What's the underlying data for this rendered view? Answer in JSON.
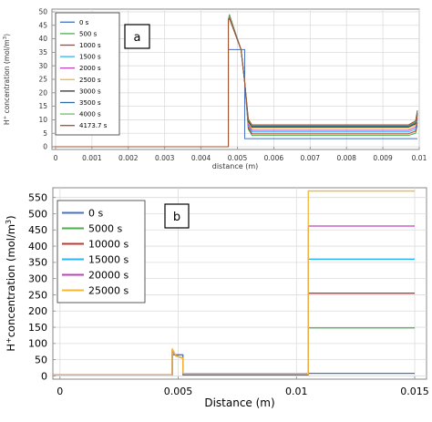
{
  "chart_data": [
    {
      "panel_label": "a",
      "type": "line",
      "xlabel": "distance (m)",
      "ylabel_main": "H",
      "ylabel_sup": "+",
      "ylabel_rest": " concentration (mol/m",
      "ylabel_unit_sup": "3",
      "ylabel_end": ")",
      "xlim": [
        -0.0001,
        0.01
      ],
      "ylim": [
        -1,
        51
      ],
      "xticks": [
        0,
        0.001,
        0.002,
        0.003,
        0.004,
        0.005,
        0.006,
        0.007,
        0.008,
        0.009,
        0.01
      ],
      "yticks": [
        0,
        5,
        10,
        15,
        20,
        25,
        30,
        35,
        40,
        45,
        50
      ],
      "grid": true,
      "legend_position": "top-left",
      "series": [
        {
          "name": "0 s",
          "color": "#4472c4",
          "x": [
            -0.0001,
            0.00475,
            0.00475,
            0.0052,
            0.0052,
            0.00995
          ],
          "y": [
            0,
            0,
            36,
            36,
            3,
            3
          ]
        },
        {
          "name": "500 s",
          "color": "#4caf50",
          "x": [
            -0.0001,
            0.00475,
            0.00475,
            0.00478,
            0.0051,
            0.0052,
            0.0053,
            0.0054,
            0.0097,
            0.0099,
            0.00995
          ],
          "y": [
            0,
            0,
            47,
            49,
            36,
            24,
            6.5,
            4.2,
            4.2,
            5,
            8
          ]
        },
        {
          "name": "1000 s",
          "color": "#c0392b",
          "x": [
            -0.0001,
            0.00475,
            0.00475,
            0.00478,
            0.0051,
            0.0052,
            0.0053,
            0.0054,
            0.0097,
            0.0099,
            0.00995
          ],
          "y": [
            0,
            0,
            47,
            48.5,
            36,
            24,
            7,
            4.8,
            4.8,
            5.8,
            9
          ]
        },
        {
          "name": "1500 s",
          "color": "#29b6f6",
          "x": [
            -0.0001,
            0.00475,
            0.00475,
            0.00478,
            0.0051,
            0.0052,
            0.0053,
            0.0054,
            0.0097,
            0.0099,
            0.00995
          ],
          "y": [
            0,
            0,
            47,
            48.3,
            36,
            24,
            7.6,
            5.5,
            5.5,
            6.5,
            10
          ]
        },
        {
          "name": "2000 s",
          "color": "#c040c0",
          "x": [
            -0.0001,
            0.00475,
            0.00475,
            0.00478,
            0.0051,
            0.0052,
            0.0053,
            0.0054,
            0.0097,
            0.0099,
            0.00995
          ],
          "y": [
            0,
            0,
            47,
            48.1,
            36,
            24,
            8.2,
            6.1,
            6.1,
            7.2,
            10.8
          ]
        },
        {
          "name": "2500 s",
          "color": "#f5b82e",
          "x": [
            -0.0001,
            0.00475,
            0.00475,
            0.00478,
            0.0051,
            0.0052,
            0.0053,
            0.0054,
            0.0097,
            0.0099,
            0.00995
          ],
          "y": [
            0,
            0,
            47,
            48,
            36,
            24,
            8.8,
            6.8,
            6.8,
            8,
            11.5
          ]
        },
        {
          "name": "3000 s",
          "color": "#333333",
          "x": [
            -0.0001,
            0.00475,
            0.00475,
            0.00478,
            0.0051,
            0.0052,
            0.0053,
            0.0054,
            0.0097,
            0.0099,
            0.00995
          ],
          "y": [
            0,
            0,
            47,
            47.8,
            36,
            24,
            9.3,
            7.3,
            7.3,
            8.5,
            12
          ]
        },
        {
          "name": "3500 s",
          "color": "#2e6da4",
          "x": [
            -0.0001,
            0.00475,
            0.00475,
            0.00478,
            0.0051,
            0.0052,
            0.0053,
            0.0054,
            0.0097,
            0.0099,
            0.00995
          ],
          "y": [
            0,
            0,
            47,
            47.7,
            36,
            24,
            9.7,
            7.6,
            7.6,
            9,
            12.5
          ]
        },
        {
          "name": "4000 s",
          "color": "#6abf69",
          "x": [
            -0.0001,
            0.00475,
            0.00475,
            0.00478,
            0.0051,
            0.0052,
            0.0053,
            0.0054,
            0.0097,
            0.0099,
            0.00995
          ],
          "y": [
            0,
            0,
            47,
            47.6,
            36,
            24,
            10,
            7.9,
            7.9,
            9.3,
            13
          ]
        },
        {
          "name": "4173.7 s",
          "color": "#a0522d",
          "x": [
            -0.0001,
            0.00475,
            0.00475,
            0.00478,
            0.0051,
            0.0052,
            0.0053,
            0.0054,
            0.0097,
            0.0099,
            0.00995
          ],
          "y": [
            0,
            0,
            47,
            47.5,
            36,
            24,
            10.2,
            8.1,
            8.1,
            9.6,
            13.5
          ]
        }
      ]
    },
    {
      "panel_label": "b",
      "type": "line",
      "xlabel": "Distance (m)",
      "ylabel_main": "H",
      "ylabel_sup": "+",
      "ylabel_rest": "concentration (mol/m",
      "ylabel_unit_sup": "3",
      "ylabel_end": ")",
      "xlim": [
        -0.0003,
        0.0155
      ],
      "ylim": [
        -10,
        580
      ],
      "xticks": [
        0,
        0.005,
        0.01,
        0.015
      ],
      "yticks": [
        0,
        50,
        100,
        150,
        200,
        250,
        300,
        350,
        400,
        450,
        500,
        550
      ],
      "grid": true,
      "legend_position": "top-left",
      "series": [
        {
          "name": "0 s",
          "color": "#4472c4",
          "x": [
            -0.0003,
            0.00475,
            0.00475,
            0.0052,
            0.0052,
            0.0105,
            0.0105,
            0.015
          ],
          "y": [
            3,
            3,
            65,
            65,
            3,
            3,
            8,
            8
          ]
        },
        {
          "name": "5000 s",
          "color": "#4caf50",
          "x": [
            -0.0003,
            0.00475,
            0.00475,
            0.0049,
            0.0052,
            0.0052,
            0.0104,
            0.0105,
            0.0105,
            0.015
          ],
          "y": [
            3,
            3,
            78,
            62,
            55,
            8,
            8,
            5,
            148,
            148
          ]
        },
        {
          "name": "10000 s",
          "color": "#c0392b",
          "x": [
            -0.0003,
            0.00475,
            0.00475,
            0.0049,
            0.0052,
            0.0052,
            0.0104,
            0.0105,
            0.0105,
            0.015
          ],
          "y": [
            3,
            3,
            80,
            62,
            55,
            8,
            8,
            5,
            255,
            255
          ]
        },
        {
          "name": "15000 s",
          "color": "#29b6f6",
          "x": [
            -0.0003,
            0.00475,
            0.00475,
            0.0049,
            0.0052,
            0.0052,
            0.0104,
            0.0105,
            0.0105,
            0.015
          ],
          "y": [
            3,
            3,
            81,
            62,
            55,
            8,
            8,
            5,
            360,
            360
          ]
        },
        {
          "name": "20000 s",
          "color": "#c040c0",
          "x": [
            -0.0003,
            0.00475,
            0.00475,
            0.0049,
            0.0052,
            0.0052,
            0.0104,
            0.0105,
            0.0105,
            0.015
          ],
          "y": [
            3,
            3,
            82,
            62,
            55,
            8,
            8,
            5,
            462,
            462
          ]
        },
        {
          "name": "25000 s",
          "color": "#f5b82e",
          "x": [
            -0.0003,
            0.00475,
            0.00475,
            0.0049,
            0.0052,
            0.0052,
            0.0104,
            0.0105,
            0.0105,
            0.015
          ],
          "y": [
            3,
            3,
            84,
            62,
            55,
            8,
            8,
            5,
            570,
            570
          ]
        }
      ]
    }
  ]
}
